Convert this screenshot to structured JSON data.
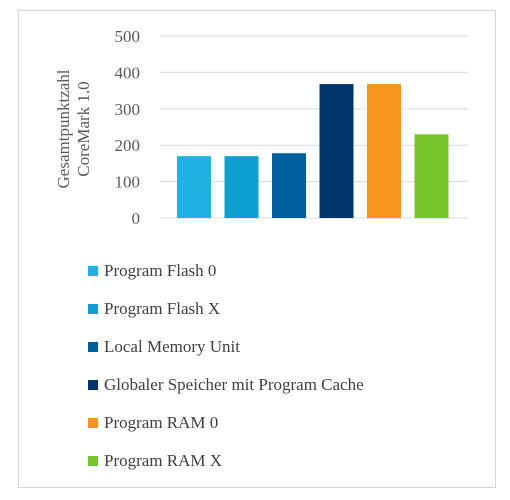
{
  "chart_data": {
    "type": "bar",
    "ylabel": "Gesamtpunktzahl CoreMark 1.0",
    "ylabel_lines": [
      "Gesamtpunktzahl",
      "CoreMark 1.0"
    ],
    "ylim": [
      0,
      500
    ],
    "yticks": [
      0,
      100,
      200,
      300,
      400,
      500
    ],
    "grid": true,
    "legend_position": "bottom",
    "categories": [
      "Program Flash 0",
      "Program Flash X",
      "Local Memory Unit",
      "Globaler Speicher mit Program Cache",
      "Program RAM 0",
      "Program RAM X"
    ],
    "values": [
      170,
      170,
      178,
      368,
      368,
      230
    ],
    "colors": [
      "#1fb2e3",
      "#0c9fcf",
      "#005f9c",
      "#003468",
      "#f5951d",
      "#76c62b"
    ]
  }
}
